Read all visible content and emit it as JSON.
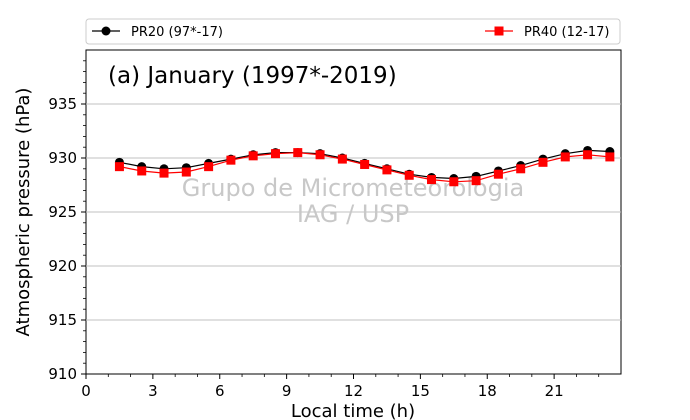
{
  "chart_data": {
    "type": "line",
    "title": "(a) January (1997*-2019)",
    "xlabel": "Local time (h)",
    "ylabel": "Atmospheric pressure (hPa)",
    "xlim": [
      0,
      24
    ],
    "ylim": [
      910,
      940
    ],
    "xticks": [
      0,
      3,
      6,
      9,
      12,
      15,
      18,
      21
    ],
    "yticks": [
      910,
      915,
      920,
      925,
      930,
      935
    ],
    "grid": "horizontal",
    "legend_position": "top",
    "watermark": [
      "Grupo de Micrometeorologia",
      "IAG / USP"
    ],
    "x": [
      1.5,
      2.5,
      3.5,
      4.5,
      5.5,
      6.5,
      7.5,
      8.5,
      9.5,
      10.5,
      11.5,
      12.5,
      13.5,
      14.5,
      15.5,
      16.5,
      17.5,
      18.5,
      19.5,
      20.5,
      21.5,
      22.5,
      23.5
    ],
    "series": [
      {
        "name": "PR20 (97*-17)",
        "color": "#000000",
        "marker": "circle",
        "values": [
          929.6,
          929.2,
          929.0,
          929.1,
          929.5,
          929.9,
          930.3,
          930.5,
          930.5,
          930.4,
          930.0,
          929.5,
          929.0,
          928.5,
          928.2,
          928.1,
          928.3,
          928.8,
          929.3,
          929.9,
          930.4,
          930.7,
          930.6
        ]
      },
      {
        "name": "PR40 (12-17)",
        "color": "#ff0000",
        "marker": "square",
        "values": [
          929.2,
          928.8,
          928.6,
          928.7,
          929.2,
          929.8,
          930.2,
          930.4,
          930.5,
          930.3,
          929.9,
          929.4,
          928.9,
          928.4,
          928.0,
          927.8,
          927.9,
          928.5,
          929.0,
          929.6,
          930.1,
          930.3,
          930.1
        ]
      }
    ]
  }
}
